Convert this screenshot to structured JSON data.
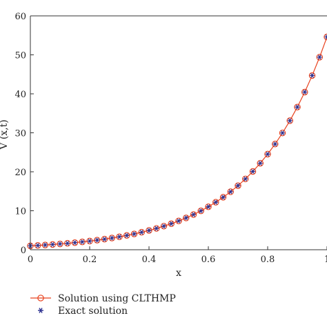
{
  "chart_data": {
    "type": "line",
    "title": "",
    "xlabel": "x",
    "ylabel": "V (x,t)",
    "xlim": [
      0,
      1
    ],
    "ylim": [
      0,
      60
    ],
    "xticks": [
      0,
      0.2,
      0.4,
      0.6,
      0.8,
      1
    ],
    "xtick_labels": [
      "0",
      "0.2",
      "0.4",
      "0.6",
      "0.8",
      "1"
    ],
    "yticks": [
      0,
      10,
      20,
      30,
      40,
      50,
      60
    ],
    "ytick_labels": [
      "0",
      "10",
      "20",
      "30",
      "40",
      "50",
      "60"
    ],
    "grid": false,
    "legend_position": "bottom-left, below plot",
    "x": [
      0,
      0.025,
      0.05,
      0.075,
      0.1,
      0.125,
      0.15,
      0.175,
      0.2,
      0.225,
      0.25,
      0.275,
      0.3,
      0.325,
      0.35,
      0.375,
      0.4,
      0.425,
      0.45,
      0.475,
      0.5,
      0.525,
      0.55,
      0.575,
      0.6,
      0.625,
      0.65,
      0.675,
      0.7,
      0.725,
      0.75,
      0.775,
      0.8,
      0.825,
      0.85,
      0.875,
      0.9,
      0.925,
      0.95,
      0.975,
      1
    ],
    "series": [
      {
        "name": "Solution using CLTHMP",
        "color": "#e8401c",
        "marker": "circle",
        "line": "solid",
        "values": [
          1.0,
          1.105,
          1.221,
          1.35,
          1.492,
          1.649,
          1.822,
          2.014,
          2.226,
          2.46,
          2.718,
          3.004,
          3.32,
          3.669,
          4.055,
          4.482,
          4.953,
          5.474,
          6.05,
          6.686,
          7.389,
          8.166,
          9.025,
          9.974,
          11.023,
          12.182,
          13.464,
          14.88,
          16.445,
          18.174,
          20.086,
          22.198,
          24.533,
          27.113,
          29.964,
          33.115,
          36.598,
          40.447,
          44.701,
          49.402,
          54.598
        ]
      },
      {
        "name": "Exact solution",
        "color": "#2b2f8f",
        "marker": "asterisk",
        "line": "none",
        "values": [
          1.0,
          1.105,
          1.221,
          1.35,
          1.492,
          1.649,
          1.822,
          2.014,
          2.226,
          2.46,
          2.718,
          3.004,
          3.32,
          3.669,
          4.055,
          4.482,
          4.953,
          5.474,
          6.05,
          6.686,
          7.389,
          8.166,
          9.025,
          9.974,
          11.023,
          12.182,
          13.464,
          14.88,
          16.445,
          18.174,
          20.086,
          22.198,
          24.533,
          27.113,
          29.964,
          33.115,
          36.598,
          40.447,
          44.701,
          49.402,
          54.598
        ]
      }
    ]
  }
}
